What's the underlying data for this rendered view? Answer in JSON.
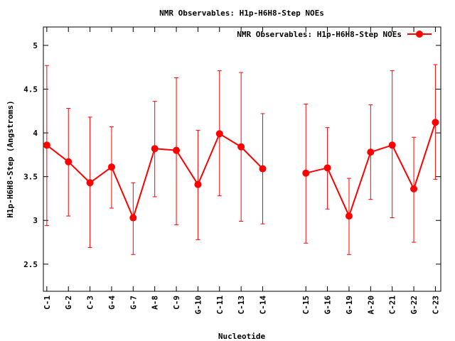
{
  "chart_data": {
    "type": "line",
    "title": "NMR Observables: H1p-H6H8-Step NOEs",
    "xlabel": "Nucleotide",
    "ylabel": "H1p-H6H8-Step (Angstroms)",
    "legend": {
      "label": "NMR Observables: H1p-H6H8-Step NOEs",
      "placement": "top-right"
    },
    "ylim": [
      2.19,
      5.21
    ],
    "xlim": [
      0.84,
      19.25
    ],
    "yticks": [
      2.5,
      3,
      3.5,
      4,
      4.5,
      5
    ],
    "ytick_labels": [
      "2.5",
      "3",
      "3.5",
      "4",
      "4.5",
      "5"
    ],
    "grid": false,
    "color": "#ff0000",
    "series": [
      {
        "name": "NMR Observables: H1p-H6H8-Step NOEs",
        "points": [
          {
            "label": "C-1",
            "x": 1,
            "y": 3.86,
            "ymax": 4.77,
            "ymin": 2.94
          },
          {
            "label": "G-2",
            "x": 2,
            "y": 3.67,
            "ymax": 4.28,
            "ymin": 3.05
          },
          {
            "label": "C-3",
            "x": 3,
            "y": 3.43,
            "ymax": 4.18,
            "ymin": 2.69
          },
          {
            "label": "G-4",
            "x": 4,
            "y": 3.61,
            "ymax": 4.07,
            "ymin": 3.14
          },
          {
            "label": "G-7",
            "x": 5,
            "y": 3.03,
            "ymax": 3.43,
            "ymin": 2.61
          },
          {
            "label": "A-8",
            "x": 6,
            "y": 3.82,
            "ymax": 4.36,
            "ymin": 3.27
          },
          {
            "label": "C-9",
            "x": 7,
            "y": 3.8,
            "ymax": 4.63,
            "ymin": 2.95
          },
          {
            "label": "G-10",
            "x": 8,
            "y": 3.41,
            "ymax": 4.03,
            "ymin": 2.78
          },
          {
            "label": "C-11",
            "x": 9,
            "y": 3.99,
            "ymax": 4.71,
            "ymin": 3.28
          },
          {
            "label": "C-13",
            "x": 10,
            "y": 3.84,
            "ymax": 4.69,
            "ymin": 2.99
          },
          {
            "label": "C-14",
            "x": 11,
            "y": 3.59,
            "ymax": 4.22,
            "ymin": 2.96
          },
          {
            "label": "C-15",
            "x": 13,
            "y": 3.54,
            "ymax": 4.33,
            "ymin": 2.74
          },
          {
            "label": "G-16",
            "x": 14,
            "y": 3.6,
            "ymax": 4.06,
            "ymin": 3.13
          },
          {
            "label": "G-19",
            "x": 15,
            "y": 3.05,
            "ymax": 3.48,
            "ymin": 2.61
          },
          {
            "label": "A-20",
            "x": 16,
            "y": 3.78,
            "ymax": 4.32,
            "ymin": 3.24
          },
          {
            "label": "C-21",
            "x": 17,
            "y": 3.86,
            "ymax": 4.71,
            "ymin": 3.03
          },
          {
            "label": "G-22",
            "x": 18,
            "y": 3.36,
            "ymax": 3.95,
            "ymin": 2.75
          },
          {
            "label": "C-23",
            "x": 19,
            "y": 4.12,
            "ymax": 4.78,
            "ymin": 3.47
          }
        ]
      }
    ]
  }
}
